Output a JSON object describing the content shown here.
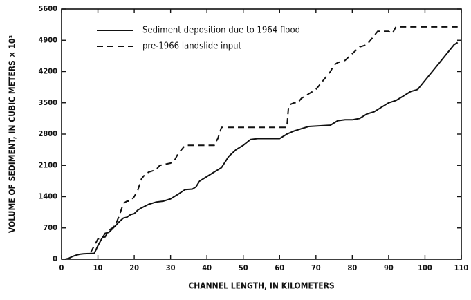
{
  "chart_data": {
    "type": "line",
    "xlabel": "CHANNEL LENGTH, IN KILOMETERS",
    "ylabel": "VOLUME OF SEDIMENT, IN CUBIC METERS × 10³",
    "xlim": [
      0,
      110
    ],
    "xticks": [
      0,
      10,
      20,
      30,
      40,
      50,
      60,
      70,
      80,
      90,
      100,
      110
    ],
    "ylim": [
      0,
      5600
    ],
    "yticks": [
      0,
      700,
      1400,
      2100,
      2800,
      3500,
      4200,
      4900,
      5600
    ],
    "legend": "upper left",
    "series": [
      {
        "name": "Sediment deposition due to 1964 flood",
        "color": "#111111",
        "dash": "solid",
        "x": [
          1,
          2,
          3,
          4,
          5,
          6,
          9,
          10,
          11,
          12,
          13,
          14,
          16,
          17,
          18,
          19,
          20,
          21,
          22,
          24,
          26,
          28,
          30,
          32,
          34,
          36,
          37,
          38,
          40,
          42,
          44,
          46,
          48,
          50,
          52,
          54,
          56,
          60,
          62,
          64,
          66,
          68,
          70,
          72,
          74,
          76,
          78,
          80,
          82,
          84,
          86,
          88,
          90,
          92,
          94,
          96,
          98,
          100,
          102,
          104,
          106,
          108,
          109
        ],
        "values": [
          0,
          20,
          60,
          90,
          110,
          120,
          130,
          300,
          450,
          580,
          600,
          680,
          850,
          920,
          940,
          1000,
          1020,
          1100,
          1150,
          1230,
          1280,
          1300,
          1350,
          1450,
          1560,
          1570,
          1620,
          1750,
          1850,
          1950,
          2050,
          2300,
          2450,
          2550,
          2680,
          2700,
          2700,
          2700,
          2800,
          2870,
          2920,
          2970,
          2980,
          2990,
          3000,
          3100,
          3120,
          3120,
          3150,
          3250,
          3300,
          3400,
          3500,
          3550,
          3650,
          3750,
          3800,
          4000,
          4200,
          4400,
          4600,
          4800,
          4850
        ]
      },
      {
        "name": "pre-1966 landslide input",
        "color": "#111111",
        "dash": "dashed",
        "x": [
          8,
          9,
          10,
          12,
          13,
          14,
          15,
          16,
          17,
          18,
          19,
          20,
          21,
          22,
          23,
          24,
          26,
          27,
          30,
          31,
          32,
          33,
          34,
          38,
          42,
          43,
          44,
          50,
          56,
          62,
          62.5,
          64,
          65,
          66,
          68,
          69,
          70,
          72,
          74,
          75,
          76,
          78,
          80,
          82,
          84,
          86,
          87,
          90,
          91,
          92,
          96,
          100,
          108,
          109
        ],
        "values": [
          150,
          300,
          450,
          500,
          650,
          700,
          800,
          1000,
          1250,
          1300,
          1300,
          1400,
          1550,
          1800,
          1900,
          1950,
          2000,
          2100,
          2150,
          2200,
          2350,
          2450,
          2550,
          2550,
          2550,
          2700,
          2950,
          2950,
          2950,
          2950,
          3450,
          3500,
          3500,
          3600,
          3700,
          3750,
          3800,
          4000,
          4200,
          4350,
          4400,
          4450,
          4600,
          4750,
          4800,
          5000,
          5100,
          5100,
          5050,
          5200,
          5200,
          5200,
          5200,
          5200
        ]
      }
    ]
  }
}
